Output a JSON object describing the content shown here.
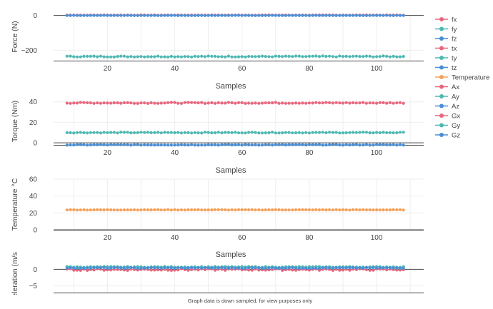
{
  "footer_note": "Graph data is down sampled, for view purposes only",
  "legend": [
    {
      "name": "fx",
      "color": "#e8687e"
    },
    {
      "name": "fy",
      "color": "#4fb8b2"
    },
    {
      "name": "fz",
      "color": "#4a8fd6"
    },
    {
      "name": "tx",
      "color": "#e8687e"
    },
    {
      "name": "ty",
      "color": "#4fb8b2"
    },
    {
      "name": "tz",
      "color": "#4a8fd6"
    },
    {
      "name": "Temperature",
      "color": "#f4a25b"
    },
    {
      "name": "Ax",
      "color": "#e8687e"
    },
    {
      "name": "Ay",
      "color": "#4fb8b2"
    },
    {
      "name": "Az",
      "color": "#4a8fd6"
    },
    {
      "name": "Gx",
      "color": "#e8687e"
    },
    {
      "name": "Gy",
      "color": "#4fb8b2"
    },
    {
      "name": "Gz",
      "color": "#4a8fd6"
    }
  ],
  "chart_data": [
    {
      "type": "line",
      "ylabel": "Force (N)",
      "xlabel": "Samples",
      "xlim": [
        4,
        114
      ],
      "xticks": [
        20,
        40,
        60,
        80,
        100
      ],
      "ylim": [
        -260,
        15
      ],
      "yticks": [
        0,
        -200
      ],
      "ytick_labels": [
        "0",
        "−200"
      ],
      "grid": true,
      "series": [
        {
          "name": "fx",
          "color": "#e8687e",
          "x_start": 8,
          "x_end": 108,
          "base": 2,
          "jitter": 0.6
        },
        {
          "name": "fy",
          "color": "#4fb8b2",
          "x_start": 8,
          "x_end": 108,
          "base": -236,
          "jitter": 3
        },
        {
          "name": "fz",
          "color": "#4a8fd6",
          "x_start": 8,
          "x_end": 108,
          "base": 0,
          "jitter": 0.6
        }
      ]
    },
    {
      "type": "line",
      "ylabel": "Torque (Nm)",
      "xlabel": "Samples",
      "xlim": [
        4,
        114
      ],
      "xticks": [
        20,
        40,
        60,
        80,
        100
      ],
      "ylim": [
        -2,
        44
      ],
      "yticks": [
        0,
        20,
        40
      ],
      "ytick_labels": [
        "0",
        "20",
        "40"
      ],
      "grid": true,
      "series": [
        {
          "name": "tx",
          "color": "#e8687e",
          "x_start": 8,
          "x_end": 108,
          "base": 39,
          "jitter": 0.5
        },
        {
          "name": "ty",
          "color": "#4fb8b2",
          "x_start": 8,
          "x_end": 108,
          "base": 10,
          "jitter": 0.4
        },
        {
          "name": "tz",
          "color": "#4a8fd6",
          "x_start": 8,
          "x_end": 108,
          "base": -2,
          "jitter": 0.3
        }
      ]
    },
    {
      "type": "line",
      "ylabel": "Temperature °C",
      "xlabel": "Samples",
      "xlim": [
        4,
        114
      ],
      "xticks": [
        20,
        40,
        60,
        80,
        100
      ],
      "ylim": [
        0,
        60
      ],
      "yticks": [
        0,
        20,
        40,
        60
      ],
      "ytick_labels": [
        "0",
        "20",
        "40",
        "60"
      ],
      "grid": true,
      "series": [
        {
          "name": "Temperature",
          "color": "#f4a25b",
          "x_start": 8,
          "x_end": 108,
          "base": 23.6,
          "jitter": 0.2
        }
      ]
    },
    {
      "type": "line",
      "ylabel": "Acceleration (m/s2)",
      "xlabel": "",
      "xlim": [
        4,
        114
      ],
      "xticks": [],
      "ylim": [
        -7,
        2
      ],
      "yticks": [
        0,
        -5
      ],
      "ytick_labels": [
        "0",
        "−5"
      ],
      "grid": true,
      "series": [
        {
          "name": "Ax",
          "color": "#e8687e",
          "x_start": 8,
          "x_end": 108,
          "base": -0.1,
          "jitter": 0.25
        },
        {
          "name": "Ay",
          "color": "#4fb8b2",
          "x_start": 8,
          "x_end": 108,
          "base": 0.7,
          "jitter": 0.12
        },
        {
          "name": "Az",
          "color": "#4a8fd6",
          "x_start": 8,
          "x_end": 108,
          "base": 0.4,
          "jitter": 0.12
        }
      ]
    }
  ]
}
